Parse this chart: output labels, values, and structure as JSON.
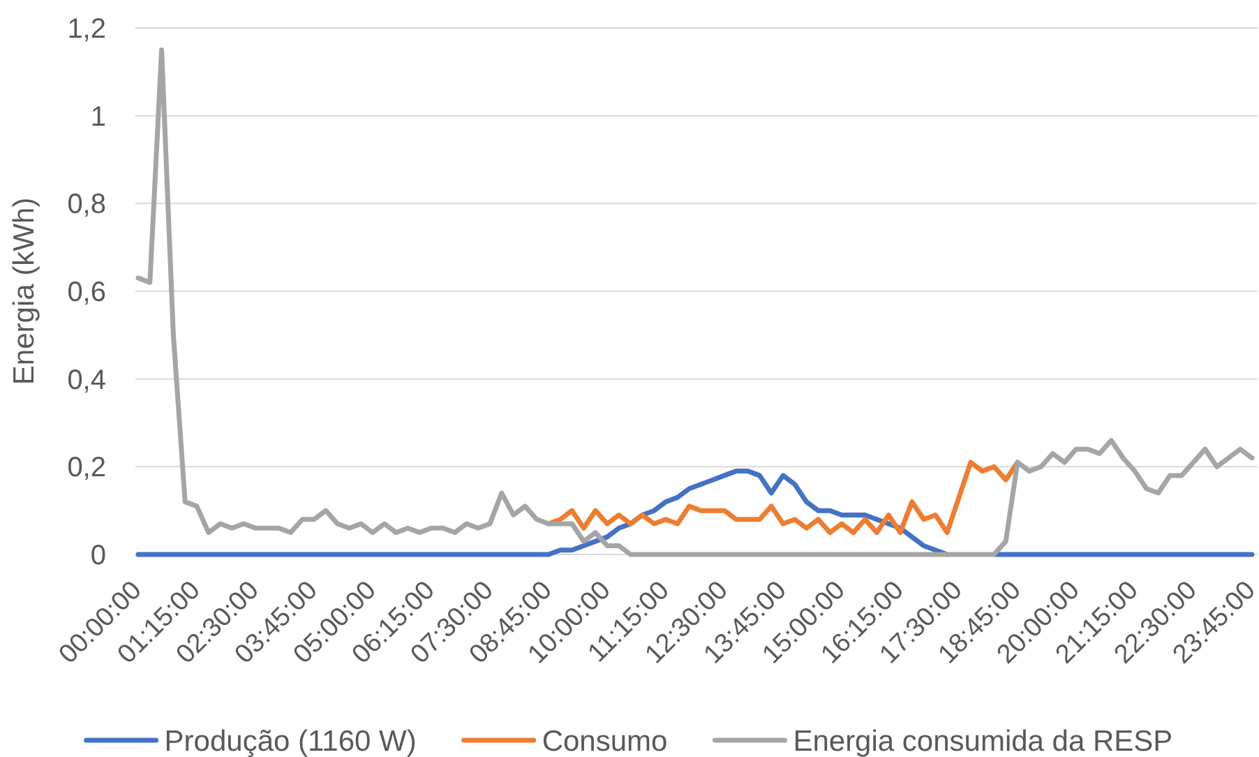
{
  "chart_data": {
    "type": "line",
    "ylabel": "Energia (kWh)",
    "categories": [
      "00:00:00",
      null,
      null,
      null,
      null,
      "01:15:00",
      null,
      null,
      null,
      null,
      "02:30:00",
      null,
      null,
      null,
      null,
      "03:45:00",
      null,
      null,
      null,
      null,
      "05:00:00",
      null,
      null,
      null,
      null,
      "06:15:00",
      null,
      null,
      null,
      null,
      "07:30:00",
      null,
      null,
      null,
      null,
      "08:45:00",
      null,
      null,
      null,
      null,
      "10:00:00",
      null,
      null,
      null,
      null,
      "11:15:00",
      null,
      null,
      null,
      null,
      "12:30:00",
      null,
      null,
      null,
      null,
      "13:45:00",
      null,
      null,
      null,
      null,
      "15:00:00",
      null,
      null,
      null,
      null,
      "16:15:00",
      null,
      null,
      null,
      null,
      "17:30:00",
      null,
      null,
      null,
      null,
      "18:45:00",
      null,
      null,
      null,
      null,
      "20:00:00",
      null,
      null,
      null,
      null,
      "21:15:00",
      null,
      null,
      null,
      null,
      "22:30:00",
      null,
      null,
      null,
      null,
      "23:45:00"
    ],
    "series": [
      {
        "name": "Produção (1160 W)",
        "color": "#4472c4",
        "values": [
          0,
          0,
          0,
          0,
          0,
          0,
          0,
          0,
          0,
          0,
          0,
          0,
          0,
          0,
          0,
          0,
          0,
          0,
          0,
          0,
          0,
          0,
          0,
          0,
          0,
          0,
          0,
          0,
          0,
          0,
          0,
          0,
          0,
          0,
          0,
          0,
          0.01,
          0.01,
          0.02,
          0.03,
          0.04,
          0.06,
          0.07,
          0.09,
          0.1,
          0.12,
          0.13,
          0.15,
          0.16,
          0.17,
          0.18,
          0.19,
          0.19,
          0.18,
          0.14,
          0.18,
          0.16,
          0.12,
          0.1,
          0.1,
          0.09,
          0.09,
          0.09,
          0.08,
          0.07,
          0.06,
          0.04,
          0.02,
          0.01,
          0,
          null,
          null,
          null,
          0,
          0,
          0,
          0,
          0,
          0,
          0,
          0,
          0,
          0,
          0,
          0,
          0,
          0,
          0,
          0,
          0,
          0,
          0,
          0,
          0,
          0,
          0
        ]
      },
      {
        "name": "Consumo",
        "color": "#ed7d31",
        "values": [
          null,
          null,
          null,
          null,
          null,
          null,
          null,
          null,
          null,
          null,
          null,
          null,
          null,
          null,
          null,
          null,
          null,
          null,
          null,
          null,
          null,
          null,
          null,
          null,
          null,
          null,
          null,
          null,
          null,
          null,
          null,
          null,
          null,
          null,
          null,
          0.07,
          0.08,
          0.1,
          0.06,
          0.1,
          0.07,
          0.09,
          0.07,
          0.09,
          0.07,
          0.08,
          0.07,
          0.11,
          0.1,
          0.1,
          0.1,
          0.08,
          0.08,
          0.08,
          0.11,
          0.07,
          0.08,
          0.06,
          0.08,
          0.05,
          0.07,
          0.05,
          0.08,
          0.05,
          0.09,
          0.05,
          0.12,
          0.08,
          0.09,
          0.05,
          0.13,
          0.21,
          0.19,
          0.2,
          0.17,
          0.21,
          null,
          null,
          null,
          null,
          null,
          null,
          null,
          null,
          null,
          null,
          null,
          null,
          null,
          null,
          null,
          null,
          null,
          null,
          null,
          null
        ]
      },
      {
        "name": "Energia consumida da RESP",
        "color": "#a5a5a5",
        "values": [
          0.63,
          0.62,
          1.15,
          0.5,
          0.12,
          0.11,
          0.05,
          0.07,
          0.06,
          0.07,
          0.06,
          0.06,
          0.06,
          0.05,
          0.08,
          0.08,
          0.1,
          0.07,
          0.06,
          0.07,
          0.05,
          0.07,
          0.05,
          0.06,
          0.05,
          0.06,
          0.06,
          0.05,
          0.07,
          0.06,
          0.07,
          0.14,
          0.09,
          0.11,
          0.08,
          0.07,
          0.07,
          0.07,
          0.03,
          0.05,
          0.02,
          0.02,
          0,
          0,
          0,
          0,
          0,
          0,
          0,
          0,
          0,
          0,
          0,
          0,
          0,
          0,
          0,
          0,
          0,
          0,
          0,
          0,
          0,
          0,
          0,
          0,
          0,
          0,
          0,
          0,
          0,
          0,
          0,
          0,
          0.03,
          0.21,
          0.19,
          0.2,
          0.23,
          0.21,
          0.24,
          0.24,
          0.23,
          0.26,
          0.22,
          0.19,
          0.15,
          0.14,
          0.18,
          0.18,
          0.21,
          0.24,
          0.2,
          0.22,
          0.24,
          0.22
        ]
      }
    ],
    "ylim": [
      0,
      1.2
    ],
    "yticks": [
      0,
      {
        "value": 0.2,
        "label": "0,2"
      },
      {
        "value": 0.4,
        "label": "0,4"
      },
      {
        "value": 0.6,
        "label": "0,6"
      },
      {
        "value": 0.8,
        "label": "0,8"
      },
      1,
      {
        "value": 1.2,
        "label": "1,2"
      }
    ],
    "grid": "y",
    "legend": "bottom"
  }
}
